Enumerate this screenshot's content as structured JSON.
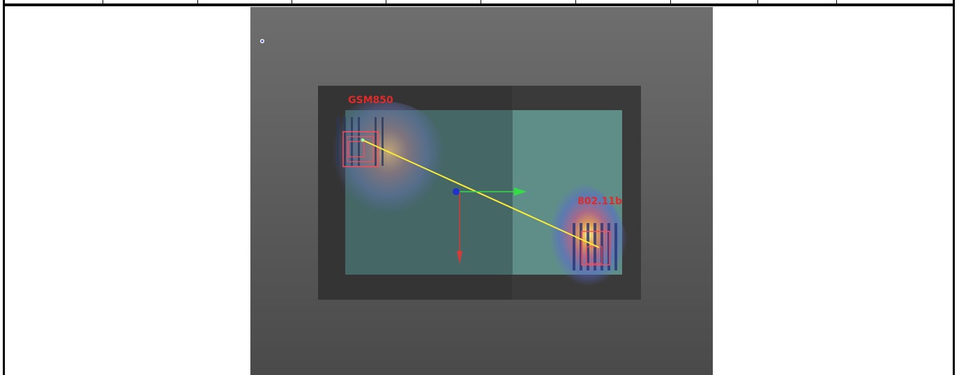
{
  "simulation": {
    "labels": {
      "source_left": "GSM850",
      "source_right": "802.11b"
    },
    "colors": {
      "viewport_top": "#6e6e6e",
      "viewport_bottom": "#4a4a4a",
      "board_dark": "#333333",
      "board_panel": "#5f8e89",
      "link_line": "#ffee33",
      "label_red": "#e02a2a",
      "axis_x": "#33dd44",
      "axis_y": "#d63a3a",
      "origin": "#2233cc"
    },
    "icons": [
      "orientation-gizmo-icon",
      "origin-sphere-icon"
    ]
  }
}
